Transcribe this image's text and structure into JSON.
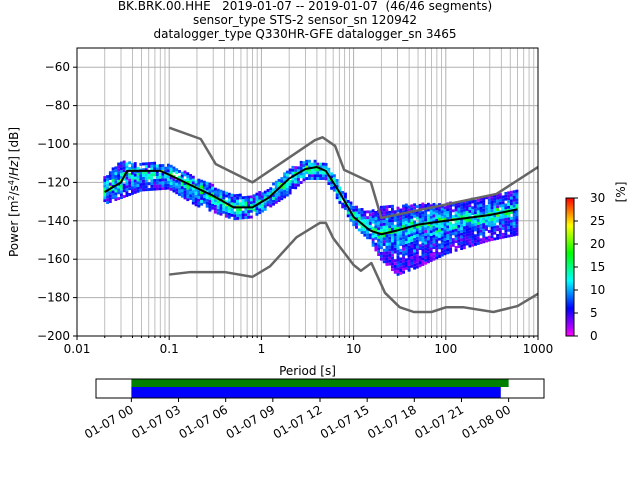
{
  "title_lines": [
    "BK.BRK.00.HHE   2019-01-07 -- 2019-01-07  (46/46 segments)",
    "sensor_type STS-2 sensor_sn 120942",
    "datalogger_type Q330HR-GFE datalogger_sn 3465"
  ],
  "chart_data": {
    "type": "heatmap",
    "subtype": "ppsd",
    "xlabel": "Period [s]",
    "ylabel_prefix": "Power [m",
    "ylabel": "Power [m²/s⁴/Hz] [dB]",
    "xscale": "log",
    "xlim": [
      0.01,
      1000
    ],
    "ylim": [
      -200,
      -50
    ],
    "xticks": [
      0.01,
      0.1,
      1,
      10,
      100,
      1000
    ],
    "xtick_labels": [
      "0.01",
      "0.1",
      "1",
      "10",
      "100",
      "1000"
    ],
    "yticks": [
      -200,
      -180,
      -160,
      -140,
      -120,
      -100,
      -80,
      -60
    ],
    "ytick_labels": [
      "−200",
      "−180",
      "−160",
      "−140",
      "−120",
      "−100",
      "−80",
      "−60"
    ],
    "grid": true,
    "mean_curve": {
      "name": "mean",
      "color": "#000000",
      "period": [
        0.02,
        0.03,
        0.035,
        0.05,
        0.08,
        0.1,
        0.2,
        0.3,
        0.5,
        0.8,
        1.2,
        2,
        3,
        4,
        5,
        7,
        10,
        15,
        20,
        30,
        50,
        100,
        300,
        600
      ],
      "db": [
        -125,
        -120,
        -114,
        -114,
        -114,
        -116,
        -123,
        -127,
        -133,
        -133,
        -128,
        -118,
        -113,
        -112,
        -114,
        -125,
        -138,
        -145,
        -147,
        -145,
        -142,
        -140,
        -137,
        -134
      ]
    },
    "density_band": {
      "period": [
        0.02,
        0.03,
        0.05,
        0.1,
        0.2,
        0.5,
        0.8,
        1.2,
        2,
        3,
        5,
        7,
        10,
        15,
        20,
        30,
        50,
        100,
        300,
        600
      ],
      "upper_db": [
        -117,
        -109,
        -110,
        -110,
        -118,
        -126,
        -127,
        -123,
        -113,
        -108,
        -110,
        -120,
        -132,
        -135,
        -133,
        -132,
        -131,
        -131,
        -127,
        -124
      ],
      "lower_db": [
        -131,
        -128,
        -124,
        -123,
        -132,
        -139,
        -138,
        -133,
        -126,
        -118,
        -118,
        -130,
        -142,
        -150,
        -160,
        -168,
        -164,
        -157,
        -150,
        -147
      ]
    },
    "noise_models": [
      {
        "name": "NHNM",
        "color": "#666666",
        "period": [
          0.1,
          0.22,
          0.32,
          0.8,
          3.8,
          4.6,
          6.3,
          7.9,
          15.4,
          20,
          354.8,
          1000
        ],
        "db": [
          -91.5,
          -97.4,
          -110.5,
          -120,
          -98,
          -96.5,
          -101,
          -113.5,
          -120,
          -138.5,
          -126,
          -112
        ]
      },
      {
        "name": "NLNM",
        "color": "#666666",
        "period": [
          0.1,
          0.17,
          0.4,
          0.8,
          1.24,
          2.4,
          4.3,
          5,
          6,
          10,
          12,
          15.6,
          21.9,
          31.6,
          45,
          70,
          101,
          154,
          328,
          600,
          1000
        ],
        "db": [
          -168,
          -166.7,
          -166.7,
          -169.2,
          -163.7,
          -148.6,
          -141.1,
          -141.1,
          -149,
          -163,
          -166,
          -162,
          -177.5,
          -185,
          -187.5,
          -187.5,
          -185,
          -185,
          -187.5,
          -184.4,
          -178
        ]
      }
    ],
    "colorbar": {
      "label": "[%]",
      "range": [
        0,
        30
      ],
      "ticks": [
        "0",
        "5",
        "10",
        "15",
        "20",
        "25",
        "30"
      ],
      "colors": [
        "#ff00ff",
        "#0000ff",
        "#00ffff",
        "#00ff00",
        "#ffff00",
        "#ff0000"
      ]
    },
    "timeline": {
      "xtick_labels": [
        "01-07 00",
        "01-07 03",
        "01-07 06",
        "01-07 09",
        "01-07 12",
        "01-07 15",
        "01-07 18",
        "01-07 21",
        "01-08 00"
      ],
      "xlim_hours": [
        -2.25,
        26.25
      ],
      "bars": [
        {
          "name": "data-coverage",
          "color": "#008000",
          "start_hour": 0,
          "end_hour": 24
        },
        {
          "name": "psd-coverage",
          "color": "#0000ff",
          "start_hour": 0,
          "end_hour": 23.5
        }
      ]
    }
  }
}
